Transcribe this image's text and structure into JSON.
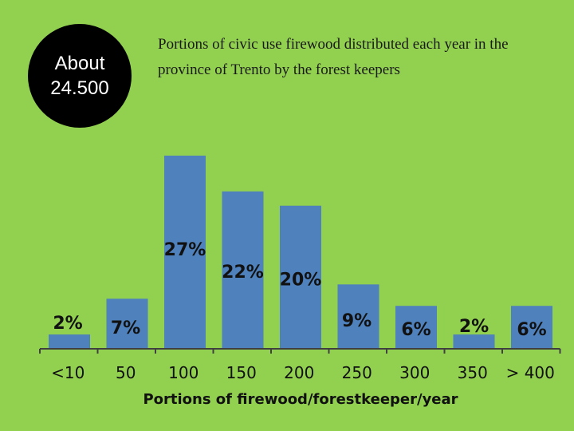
{
  "badge": {
    "line1": "About",
    "line2": "24.500"
  },
  "chart_data": {
    "type": "bar",
    "title_line1": "Portions of civic use firewood distributed each year in the",
    "title_line2": "province of Trento by the forest keepers",
    "xlabel": "Portions of firewood/forestkeeper/year",
    "ylabel": "",
    "categories": [
      "<10",
      "50",
      "100",
      "150",
      "200",
      "250",
      "300",
      "350",
      "> 400"
    ],
    "values": [
      2,
      7,
      27,
      22,
      20,
      9,
      6,
      2,
      6
    ],
    "data_labels": [
      "2%",
      "7%",
      "27%",
      "22%",
      "20%",
      "9%",
      "6%",
      "2%",
      "6%"
    ],
    "ylim": [
      0,
      27
    ],
    "grid": false,
    "legend": "none",
    "bar_color": "#4f81bd",
    "background_color": "#92d050"
  }
}
